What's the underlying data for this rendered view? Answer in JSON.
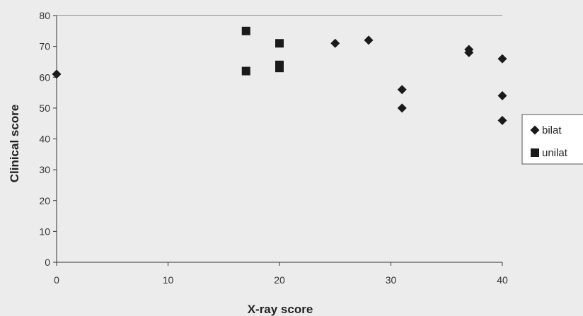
{
  "chart_data": {
    "type": "scatter",
    "xlabel": "X-ray score",
    "ylabel": "Clinical score",
    "xlim": [
      0,
      40
    ],
    "ylim": [
      0,
      80
    ],
    "x_ticks": [
      "0",
      "10",
      "20",
      "30",
      "40"
    ],
    "y_ticks": [
      "0",
      "10",
      "20",
      "30",
      "40",
      "50",
      "60",
      "70",
      "80"
    ],
    "grid": "horizontal",
    "legend_position": "right",
    "series": [
      {
        "name": "bilat",
        "marker": "diamond",
        "color": "#1a1a1a",
        "points": [
          {
            "x": 0,
            "y": 61
          },
          {
            "x": 25,
            "y": 71
          },
          {
            "x": 28,
            "y": 72
          },
          {
            "x": 31,
            "y": 56
          },
          {
            "x": 31,
            "y": 50
          },
          {
            "x": 37,
            "y": 69
          },
          {
            "x": 37,
            "y": 68
          },
          {
            "x": 40,
            "y": 66
          },
          {
            "x": 40,
            "y": 54
          },
          {
            "x": 40,
            "y": 46
          }
        ]
      },
      {
        "name": "unilat",
        "marker": "square",
        "color": "#1a1a1a",
        "points": [
          {
            "x": 17,
            "y": 75
          },
          {
            "x": 17,
            "y": 62
          },
          {
            "x": 20,
            "y": 71
          },
          {
            "x": 20,
            "y": 64
          },
          {
            "x": 20,
            "y": 63
          }
        ]
      }
    ]
  }
}
